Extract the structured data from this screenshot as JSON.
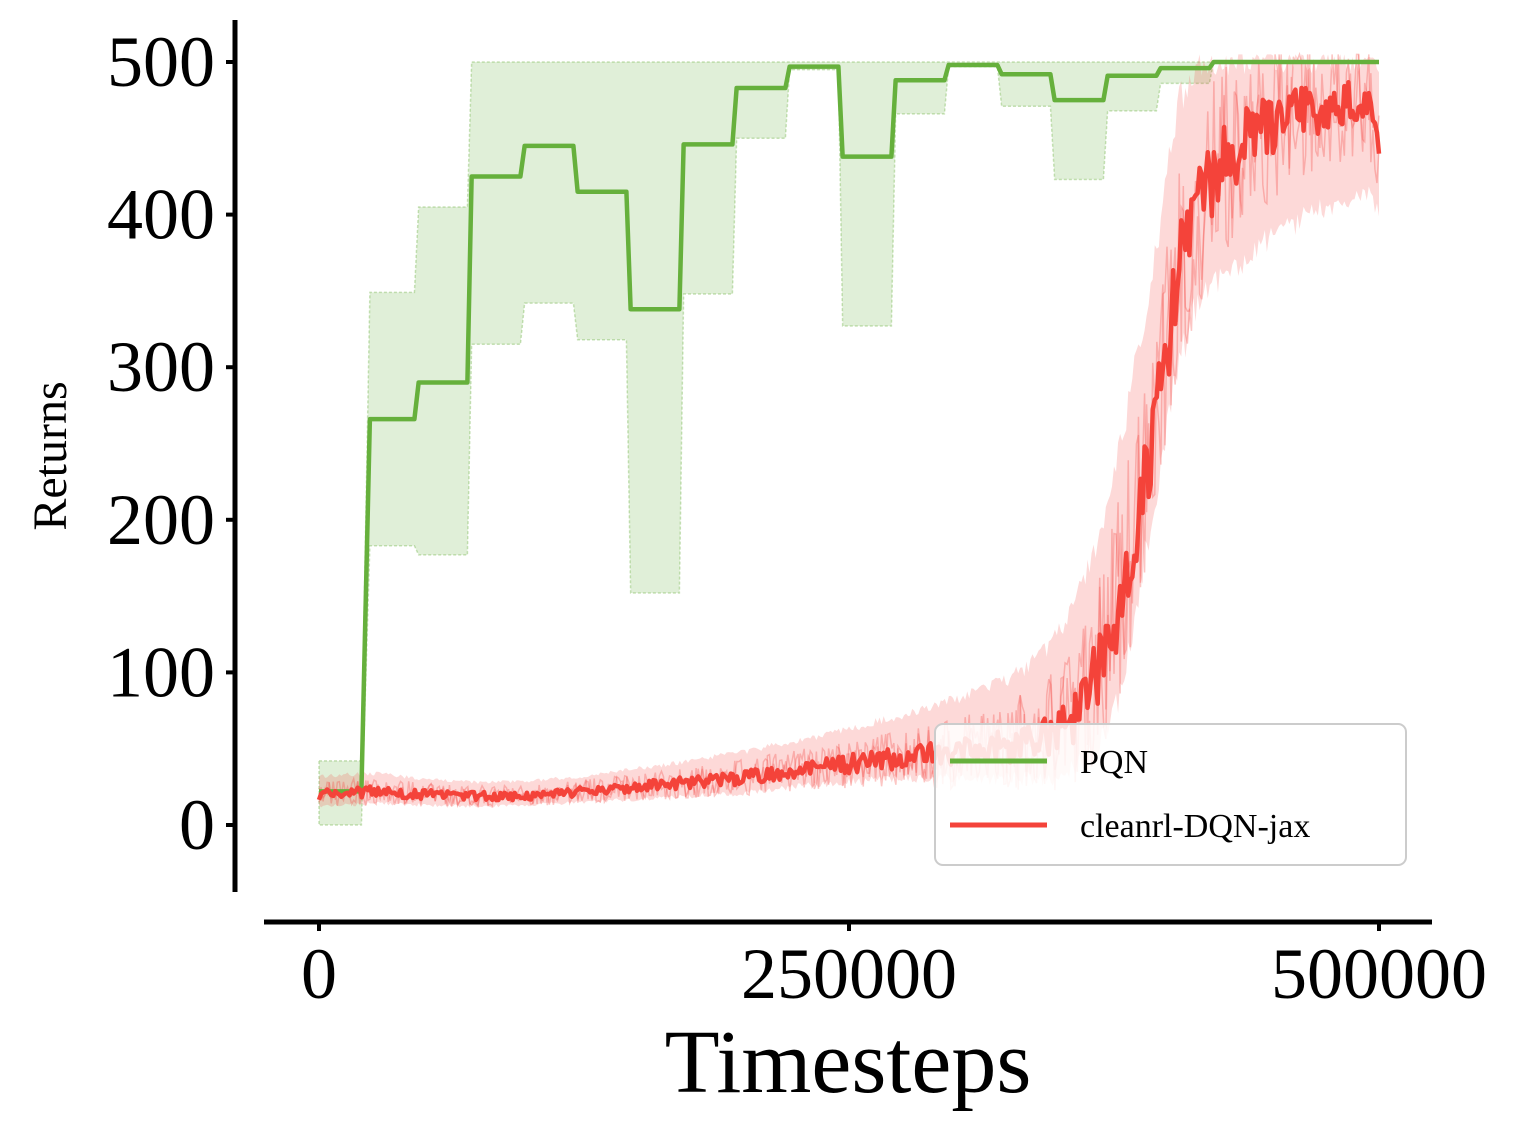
{
  "chart_data": {
    "type": "line",
    "title": "",
    "xlabel": "Timesteps",
    "ylabel": "Returns",
    "xlim": [
      -25000,
      525000
    ],
    "ylim": [
      -45,
      525
    ],
    "xticks": [
      0,
      250000,
      500000
    ],
    "xtick_labels": [
      "0",
      "250000",
      "500000"
    ],
    "yticks": [
      0,
      100,
      200,
      300,
      400,
      500
    ],
    "ytick_labels": [
      "0",
      "100",
      "200",
      "300",
      "400",
      "500"
    ],
    "grid": false,
    "legend": {
      "position": "bottom-right",
      "entries": [
        "PQN",
        "cleanrl-DQN-jax"
      ]
    },
    "colors": {
      "PQN": "#66b03c",
      "cleanrl-DQN-jax": "#f4433a"
    },
    "series": [
      {
        "name": "PQN",
        "style": "step",
        "x": [
          0,
          20000,
          24000,
          45000,
          47000,
          70000,
          72000,
          95000,
          97000,
          120000,
          122000,
          145000,
          147000,
          170000,
          172000,
          195000,
          197000,
          220000,
          222000,
          245000,
          247000,
          270000,
          272000,
          295000,
          297000,
          320000,
          322000,
          345000,
          347000,
          370000,
          372000,
          395000,
          397000,
          420000,
          422000,
          500000
        ],
        "mean": [
          22,
          22,
          266,
          266,
          290,
          290,
          425,
          425,
          445,
          445,
          415,
          415,
          338,
          338,
          446,
          446,
          483,
          483,
          497,
          497,
          438,
          438,
          488,
          488,
          498,
          498,
          492,
          492,
          475,
          475,
          491,
          491,
          496,
          496,
          500,
          500
        ],
        "lower": [
          0,
          0,
          183,
          183,
          177,
          177,
          315,
          315,
          342,
          342,
          318,
          318,
          152,
          152,
          348,
          348,
          450,
          450,
          495,
          495,
          327,
          327,
          466,
          466,
          497,
          497,
          471,
          471,
          423,
          423,
          468,
          468,
          486,
          486,
          500,
          500
        ],
        "upper": [
          42,
          42,
          349,
          349,
          405,
          405,
          500,
          500,
          500,
          500,
          500,
          500,
          500,
          500,
          500,
          500,
          500,
          500,
          500,
          500,
          500,
          500,
          500,
          500,
          500,
          500,
          500,
          500,
          500,
          500,
          500,
          500,
          500,
          500,
          500,
          500
        ]
      },
      {
        "name": "cleanrl-DQN-jax",
        "style": "noisy-line",
        "x": [
          0,
          25000,
          50000,
          75000,
          100000,
          125000,
          150000,
          175000,
          200000,
          225000,
          250000,
          275000,
          300000,
          325000,
          340000,
          355000,
          365000,
          375000,
          385000,
          395000,
          405000,
          415000,
          425000,
          435000,
          445000,
          455000,
          465000,
          475000,
          485000,
          495000,
          500000
        ],
        "mean": [
          20,
          22,
          20,
          19,
          19,
          22,
          25,
          28,
          31,
          36,
          40,
          44,
          47,
          52,
          58,
          70,
          95,
          130,
          190,
          265,
          360,
          410,
          432,
          445,
          455,
          462,
          470,
          470,
          474,
          478,
          440
        ],
        "lower": [
          12,
          14,
          13,
          12,
          13,
          15,
          17,
          19,
          21,
          25,
          28,
          31,
          30,
          30,
          30,
          35,
          45,
          70,
          140,
          220,
          300,
          345,
          360,
          370,
          380,
          390,
          398,
          405,
          410,
          415,
          400
        ],
        "upper": [
          32,
          34,
          30,
          28,
          29,
          32,
          37,
          42,
          48,
          55,
          63,
          72,
          82,
          95,
          110,
          140,
          175,
          230,
          300,
          380,
          470,
          500,
          500,
          500,
          500,
          500,
          500,
          500,
          500,
          500,
          500
        ]
      }
    ]
  }
}
